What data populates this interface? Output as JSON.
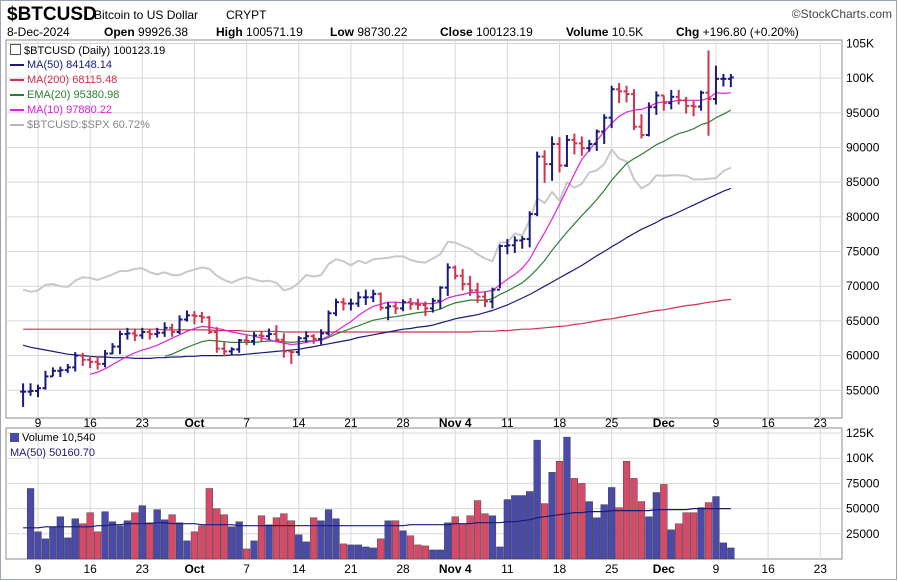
{
  "header": {
    "symbol": "$BTCUSD",
    "description": "Bitcoin to US Dollar",
    "exchange": "CRYPT",
    "logo": "StockCharts.com",
    "date": "8-Dec-2024",
    "open_label": "Open",
    "open_value": "99926.38",
    "high_label": "High",
    "high_value": "100571.19",
    "low_label": "Low",
    "low_value": "98730.22",
    "close_label": "Close",
    "close_value": "100123.19",
    "volume_label": "Volume",
    "volume_value": "10.5K",
    "chg_label": "Chg",
    "chg_value": "+196.80 (+0.20%)"
  },
  "legend": {
    "main": "$BTCUSD (Daily) 100123.19",
    "ma50": "MA(50) 84148.14",
    "ma200": "MA(200) 68115.48",
    "ema20": "EMA(20) 95380.98",
    "ma10": "MA(10) 97880.22",
    "ratio": "$BTCUSD:$SPX 60.72%"
  },
  "volume_legend": {
    "volume": "Volume 10,540",
    "ma50": "MA(50) 50160.70"
  },
  "colors": {
    "up": "#1a1a7a",
    "down": "#d0334f",
    "ma50": "#1a1a7a",
    "ma200": "#d0334f",
    "ema20": "#2e7d32",
    "ma10": "#e020e0",
    "ratio": "#c8c8c8",
    "vol_up": "#4a4aa8",
    "vol_down": "#d54a68",
    "grid": "#d8d8d8"
  },
  "chart_data": [
    {
      "type": "ohlc",
      "title": "$BTCUSD (Daily) 100123.19",
      "x_start": "2024-09-07",
      "x_end": "2024-12-08",
      "y_ticks": [
        55000,
        60000,
        65000,
        70000,
        75000,
        80000,
        85000,
        90000,
        95000,
        100000,
        105000
      ],
      "y_tick_labels": [
        "55000",
        "60000",
        "65000",
        "70000",
        "75000",
        "80000",
        "85000",
        "90000",
        "95000",
        "100K",
        "105K"
      ],
      "ylim": [
        51000,
        105500
      ],
      "x_tick_labels": [
        "9",
        "16",
        "23",
        "Oct",
        "7",
        "14",
        "21",
        "28",
        "Nov 4",
        "11",
        "18",
        "25",
        "Dec",
        "9",
        "16",
        "23"
      ],
      "x_tick_dates": [
        "2024-09-09",
        "2024-09-16",
        "2024-09-23",
        "2024-09-30",
        "2024-10-07",
        "2024-10-14",
        "2024-10-21",
        "2024-10-28",
        "2024-11-04",
        "2024-11-11",
        "2024-11-18",
        "2024-11-25",
        "2024-12-02",
        "2024-12-09",
        "2024-12-16",
        "2024-12-23"
      ],
      "close": [
        54800,
        54900,
        55300,
        57000,
        57800,
        57900,
        58300,
        60000,
        59400,
        59100,
        58800,
        60300,
        61300,
        63100,
        63200,
        62900,
        63400,
        63100,
        63300,
        64000,
        63400,
        65200,
        65800,
        65700,
        65500,
        63400,
        61000,
        60600,
        60900,
        62200,
        62100,
        62900,
        62800,
        63100,
        62300,
        60600,
        60500,
        62500,
        62800,
        62400,
        63200,
        66100,
        67700,
        67500,
        67500,
        68400,
        68400,
        68900,
        66900,
        67100,
        66800,
        67700,
        67400,
        67300,
        66800,
        67900,
        69800,
        72700,
        71500,
        70300,
        69400,
        68500,
        67800,
        69500,
        75800,
        75900,
        76600,
        76800,
        80400,
        88700,
        87600,
        90500,
        87400,
        91100,
        90600,
        89900,
        90500,
        92300,
        94300,
        98400,
        98100,
        97700,
        93000,
        91800,
        95800,
        97500,
        96400,
        97300,
        96800,
        96000,
        95900,
        97900,
        97000,
        99900,
        99900,
        100100
      ],
      "high": [
        56000,
        56000,
        55800,
        57800,
        58300,
        58400,
        58800,
        60500,
        60400,
        60000,
        59800,
        60800,
        61800,
        63600,
        64000,
        63900,
        64000,
        63800,
        64000,
        64800,
        64600,
        65800,
        66500,
        66400,
        66300,
        65700,
        64100,
        61900,
        61200,
        62400,
        62900,
        63400,
        63500,
        63900,
        64400,
        63200,
        60900,
        62800,
        63500,
        63100,
        63800,
        66500,
        68200,
        68300,
        68200,
        69200,
        69500,
        69500,
        69100,
        67700,
        67800,
        68100,
        68300,
        68200,
        67800,
        68300,
        70000,
        73300,
        73000,
        72500,
        71500,
        70500,
        69200,
        69800,
        76000,
        76800,
        77200,
        77200,
        80800,
        89400,
        89600,
        91600,
        91500,
        91800,
        92000,
        91600,
        91100,
        92600,
        94800,
        98900,
        99300,
        98900,
        98400,
        94800,
        96500,
        98100,
        97500,
        98300,
        98300,
        97300,
        96700,
        98200,
        104000,
        101800,
        100600,
        100600
      ],
      "low": [
        52600,
        54200,
        54000,
        55100,
        57000,
        56900,
        57500,
        57700,
        58500,
        58200,
        58000,
        58300,
        60200,
        60200,
        62300,
        62100,
        62400,
        62300,
        62600,
        62700,
        62700,
        63100,
        64900,
        64500,
        64700,
        63100,
        60400,
        59900,
        60000,
        60400,
        61500,
        61500,
        62000,
        62300,
        61900,
        59700,
        58800,
        60000,
        61900,
        61700,
        61600,
        62900,
        65700,
        66500,
        66500,
        67000,
        67300,
        67700,
        66500,
        65100,
        66000,
        66400,
        66600,
        66600,
        65700,
        66200,
        66700,
        68600,
        71000,
        69400,
        68600,
        67600,
        67000,
        66800,
        69700,
        74600,
        74800,
        75400,
        75600,
        80100,
        84900,
        85200,
        86400,
        87200,
        89000,
        88800,
        89400,
        89500,
        90500,
        92800,
        96400,
        96500,
        92500,
        91300,
        91600,
        94700,
        95300,
        95500,
        96200,
        94900,
        94500,
        95300,
        91700,
        96200,
        98800,
        98700
      ],
      "ma10": [
        null,
        null,
        null,
        null,
        null,
        null,
        null,
        null,
        null,
        57300,
        57600,
        58100,
        58700,
        59300,
        59900,
        60400,
        60800,
        61100,
        61500,
        62000,
        62500,
        63000,
        63500,
        63900,
        64200,
        64100,
        63900,
        63700,
        63400,
        63200,
        63000,
        62800,
        62500,
        62300,
        62000,
        61800,
        61600,
        61700,
        61900,
        62100,
        62300,
        62800,
        63500,
        64200,
        64900,
        65800,
        66500,
        67100,
        67400,
        67700,
        67700,
        67600,
        67600,
        67600,
        67500,
        67500,
        67700,
        68300,
        68600,
        68800,
        69100,
        69100,
        69200,
        69400,
        70200,
        71000,
        71700,
        72600,
        73900,
        75900,
        77700,
        79700,
        81800,
        84000,
        86200,
        88300,
        89600,
        91000,
        92300,
        93500,
        94500,
        95100,
        95400,
        95500,
        95900,
        96400,
        96600,
        96600,
        96800,
        96800,
        96800,
        96800,
        97100,
        97900,
        97800,
        97900
      ],
      "ema20": [
        null,
        null,
        null,
        null,
        null,
        null,
        null,
        null,
        null,
        null,
        null,
        null,
        null,
        null,
        null,
        null,
        null,
        null,
        null,
        59900,
        60200,
        60700,
        61200,
        61600,
        62000,
        62200,
        62100,
        62000,
        61900,
        61900,
        61900,
        61900,
        62000,
        62100,
        62100,
        62000,
        61900,
        62000,
        62100,
        62100,
        62200,
        62600,
        63100,
        63500,
        63900,
        64300,
        64700,
        65100,
        65300,
        65500,
        65600,
        65800,
        66000,
        66200,
        66300,
        66400,
        66700,
        67200,
        67600,
        67800,
        68000,
        68000,
        68000,
        68200,
        68800,
        69300,
        69900,
        70500,
        71400,
        72500,
        73700,
        75200,
        76500,
        77800,
        79000,
        80200,
        81300,
        82500,
        83800,
        85300,
        86500,
        87700,
        88400,
        89000,
        89700,
        90400,
        90900,
        91500,
        92000,
        92300,
        92700,
        93300,
        93600,
        94300,
        94800,
        95400
      ],
      "ma50": [
        61500,
        61200,
        61000,
        60800,
        60600,
        60400,
        60200,
        60100,
        60000,
        59900,
        59800,
        59800,
        59700,
        59700,
        59700,
        59600,
        59600,
        59600,
        59700,
        59700,
        59800,
        59800,
        59900,
        59900,
        60000,
        60000,
        60000,
        60000,
        60100,
        60100,
        60200,
        60300,
        60400,
        60500,
        60600,
        60700,
        60800,
        60900,
        61100,
        61300,
        61500,
        61700,
        61900,
        62100,
        62300,
        62600,
        62800,
        63000,
        63200,
        63400,
        63600,
        63800,
        63900,
        64100,
        64200,
        64400,
        64700,
        65000,
        65300,
        65500,
        65700,
        65900,
        66200,
        66500,
        66900,
        67300,
        67800,
        68300,
        68800,
        69400,
        70000,
        70600,
        71200,
        71800,
        72400,
        73000,
        73700,
        74400,
        75000,
        75700,
        76300,
        77000,
        77600,
        78200,
        78700,
        79200,
        79800,
        80200,
        80700,
        81200,
        81700,
        82200,
        82700,
        83200,
        83700,
        84100
      ],
      "ma200": [
        63800,
        63800,
        63800,
        63800,
        63800,
        63800,
        63800,
        63800,
        63800,
        63800,
        63800,
        63800,
        63800,
        63800,
        63800,
        63800,
        63800,
        63800,
        63800,
        63700,
        63700,
        63700,
        63700,
        63700,
        63700,
        63700,
        63600,
        63600,
        63600,
        63600,
        63500,
        63500,
        63500,
        63500,
        63500,
        63400,
        63400,
        63400,
        63400,
        63400,
        63400,
        63400,
        63400,
        63400,
        63400,
        63400,
        63400,
        63400,
        63400,
        63400,
        63400,
        63400,
        63400,
        63400,
        63400,
        63400,
        63400,
        63400,
        63400,
        63400,
        63400,
        63500,
        63500,
        63500,
        63600,
        63600,
        63700,
        63800,
        63800,
        63900,
        64000,
        64100,
        64200,
        64300,
        64500,
        64600,
        64800,
        65000,
        65200,
        65300,
        65500,
        65700,
        65900,
        66100,
        66300,
        66500,
        66600,
        66800,
        67000,
        67200,
        67300,
        67500,
        67700,
        67800,
        68000,
        68100
      ],
      "ratio": [
        69500,
        69200,
        69400,
        70200,
        70300,
        70000,
        69900,
        70800,
        71300,
        71200,
        70900,
        71300,
        71700,
        72200,
        72200,
        72500,
        72600,
        72000,
        71700,
        72000,
        71600,
        71600,
        72100,
        72400,
        72700,
        72500,
        71500,
        70900,
        70500,
        71000,
        71300,
        71000,
        70700,
        70800,
        70500,
        69400,
        69700,
        70500,
        71600,
        71400,
        71600,
        73200,
        73900,
        73600,
        73000,
        73700,
        73300,
        73900,
        74000,
        74100,
        74300,
        74300,
        73800,
        73500,
        73400,
        74000,
        74600,
        76400,
        76300,
        75800,
        75400,
        74600,
        74000,
        73600,
        76300,
        76300,
        77600,
        77300,
        79500,
        82700,
        82000,
        83600,
        82300,
        85000,
        84200,
        84800,
        86400,
        86700,
        87600,
        89700,
        88400,
        88000,
        85400,
        84100,
        84700,
        86000,
        85900,
        86000,
        86000,
        85900,
        85400,
        85400,
        85500,
        85600,
        86600,
        87100
      ]
    },
    {
      "type": "bar",
      "title": "Volume 10,540",
      "y_ticks": [
        25000,
        50000,
        75000,
        100000,
        125000
      ],
      "y_tick_labels": [
        "25000",
        "50000",
        "75000",
        "100K",
        "125K"
      ],
      "ylim": [
        0,
        130000
      ],
      "volume": [
        null,
        70000,
        27000,
        20000,
        32000,
        42000,
        21000,
        40000,
        35000,
        46000,
        27000,
        47000,
        37000,
        33000,
        38000,
        46000,
        53000,
        36000,
        49000,
        39000,
        44000,
        36000,
        18000,
        27000,
        33000,
        70000,
        50000,
        44000,
        32000,
        37000,
        10000,
        18000,
        43000,
        34000,
        41000,
        45000,
        38000,
        24000,
        17000,
        41000,
        38000,
        49000,
        40000,
        15000,
        14000,
        14000,
        12000,
        11000,
        20000,
        38000,
        38000,
        28000,
        23000,
        14000,
        13000,
        9000,
        9000,
        36000,
        42000,
        35000,
        43000,
        58000,
        45000,
        43000,
        12000,
        59000,
        63000,
        63000,
        67000,
        118000,
        55000,
        86000,
        97000,
        121000,
        80000,
        75000,
        57000,
        41000,
        54000,
        71000,
        51000,
        97000,
        80000,
        57000,
        42000,
        66000,
        74000,
        29000,
        35000,
        46000,
        46000,
        51000,
        56000,
        62000,
        16000,
        11000
      ],
      "volume_ma50": [
        31000,
        31000,
        31000,
        32000,
        32000,
        32000,
        32000,
        32000,
        32000,
        32000,
        33000,
        33000,
        34000,
        34000,
        35000,
        35000,
        35000,
        35000,
        36000,
        36000,
        35000,
        35000,
        35000,
        35000,
        34000,
        34000,
        34000,
        34000,
        34000,
        33000,
        33000,
        33000,
        33000,
        33000,
        33000,
        33000,
        33000,
        33000,
        33000,
        33000,
        33000,
        33000,
        33000,
        33000,
        33000,
        33000,
        33000,
        33000,
        33000,
        33000,
        33000,
        33000,
        34000,
        34000,
        34000,
        34000,
        34000,
        34000,
        35000,
        35000,
        35000,
        36000,
        36000,
        36000,
        36000,
        37000,
        37000,
        38000,
        39000,
        41000,
        42000,
        43000,
        44000,
        45000,
        46000,
        46000,
        47000,
        47000,
        47000,
        48000,
        48000,
        48000,
        48000,
        48000,
        48000,
        49000,
        49000,
        49000,
        49000,
        49000,
        50000,
        50000,
        50000,
        50000,
        50000,
        50000
      ]
    }
  ]
}
